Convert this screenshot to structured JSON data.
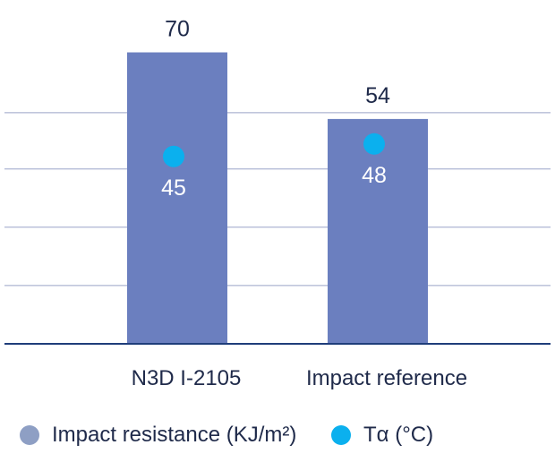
{
  "chart_data": {
    "type": "bar",
    "categories": [
      "N3D I-2105",
      "Impact reference"
    ],
    "series": [
      {
        "name": "Impact resistance (KJ/m²)",
        "kind": "bar",
        "values": [
          70,
          54
        ],
        "color": "#6b7fbf"
      },
      {
        "name": "Tα (°C)",
        "kind": "scatter",
        "values": [
          45,
          48
        ],
        "color": "#0bb0ee"
      }
    ],
    "title": "",
    "xlabel": "",
    "ylabel": "",
    "ylim": [
      0,
      80
    ],
    "grid": true,
    "legend_position": "bottom",
    "axis_color": "#1f3d7a",
    "grid_color": "#9aa3c8",
    "text_color": "#1f2a4a"
  }
}
